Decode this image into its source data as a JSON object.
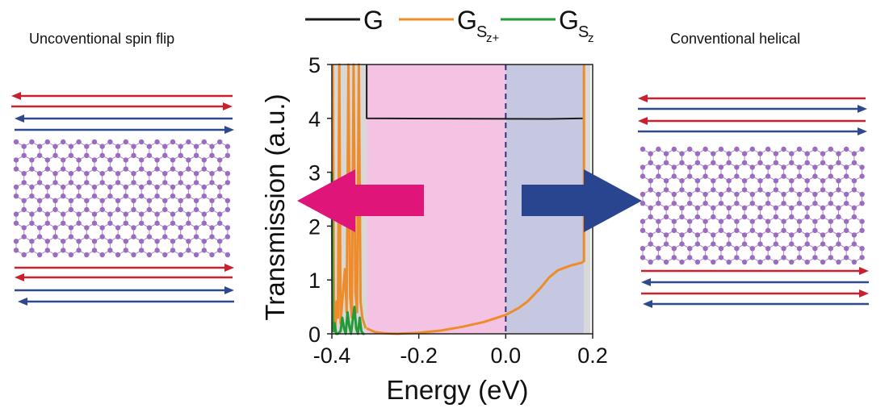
{
  "panels": {
    "left_title": "Uncoventional spin flip",
    "right_title": "Conventional helical"
  },
  "colors": {
    "G": "#1a1a1a",
    "G_Sz_plus": "#ee8c2b",
    "G_Sz": "#229a36",
    "spin_red": "#c8202f",
    "spin_blue": "#2e4a8e",
    "region_magenta": "#f4c2e2",
    "region_blue": "#c5c8e0",
    "region_gray": "#d8d8d8",
    "arrow_magenta": "#e0157a",
    "arrow_blue": "#2a4590",
    "atom": "#9b6cc1",
    "bond": "#a78bc8"
  },
  "legend": [
    {
      "key": "G",
      "label": "G",
      "sub": ""
    },
    {
      "key": "G_Sz_plus",
      "label": "G",
      "sub": "Sz+"
    },
    {
      "key": "G_Sz",
      "label": "G",
      "sub": "Sz"
    }
  ],
  "chart_data": {
    "type": "line",
    "xlabel": "Energy (eV)",
    "ylabel": "Transmission  (a.u.)",
    "xlim": [
      -0.4,
      0.2
    ],
    "ylim": [
      0,
      5
    ],
    "xticks": [
      -0.4,
      -0.2,
      0.0,
      0.2
    ],
    "xtick_labels": [
      "-0.4",
      "-0.2",
      "0.0",
      "0.2"
    ],
    "yticks": [
      0,
      1,
      2,
      3,
      4,
      5
    ],
    "ytick_labels": [
      "0",
      "1",
      "2",
      "3",
      "4",
      "5"
    ],
    "regions": [
      {
        "color": "gray",
        "x": [
          -0.4,
          -0.32
        ]
      },
      {
        "color": "magenta",
        "x": [
          -0.32,
          0.0
        ]
      },
      {
        "color": "blue",
        "x": [
          0.0,
          0.18
        ]
      },
      {
        "color": "gray",
        "x": [
          0.18,
          0.195
        ]
      }
    ],
    "fermi_level": 0.0,
    "series": [
      {
        "key": "G",
        "x": [
          -0.32,
          -0.32,
          0.1,
          0.18,
          0.18
        ],
        "y": [
          5,
          4,
          3.99,
          4.0,
          5
        ]
      },
      {
        "key": "G_Sz_plus",
        "x": [
          -0.32,
          -0.3,
          -0.28,
          -0.25,
          -0.2,
          -0.15,
          -0.1,
          -0.05,
          0.0,
          0.03,
          0.05,
          0.08,
          0.1,
          0.12,
          0.15,
          0.175,
          0.18,
          0.18
        ],
        "y": [
          0.1,
          0.03,
          0.01,
          0.0,
          0.02,
          0.06,
          0.13,
          0.22,
          0.35,
          0.48,
          0.6,
          0.85,
          1.05,
          1.18,
          1.27,
          1.32,
          1.35,
          5
        ],
        "spikes": [
          {
            "x": [
              -0.398,
              -0.395,
              -0.392,
              -0.389,
              -0.386,
              -0.383,
              -0.38,
              -0.377,
              -0.373,
              -0.37,
              -0.366,
              -0.362,
              -0.358,
              -0.354,
              -0.35,
              -0.346,
              -0.342,
              -0.338,
              -0.334,
              -0.33,
              -0.326,
              -0.322
            ],
            "y": [
              5,
              0.4,
              0.1,
              0.6,
              0.3,
              5,
              0.2,
              0.5,
              0.9,
              1.2,
              0.4,
              5,
              0.7,
              0.3,
              5,
              0.8,
              0.4,
              5,
              0.6,
              0.3,
              0.2,
              0.1
            ]
          }
        ]
      },
      {
        "key": "G_Sz",
        "x": [
          -0.4,
          -0.398,
          -0.396,
          -0.394,
          -0.39,
          -0.386,
          -0.38,
          -0.376,
          -0.372,
          -0.368,
          -0.364,
          -0.36,
          -0.356,
          -0.352,
          -0.348,
          -0.344,
          -0.34,
          -0.336,
          -0.332,
          -0.328,
          -0.325
        ],
        "y": [
          3.0,
          0.2,
          0.05,
          0.2,
          0.0,
          0.0,
          0.05,
          0.3,
          0.1,
          0.0,
          0.4,
          0.15,
          0.0,
          0.25,
          0.5,
          0.1,
          0.0,
          0.3,
          0.05,
          0.0,
          0.0
        ]
      }
    ]
  }
}
